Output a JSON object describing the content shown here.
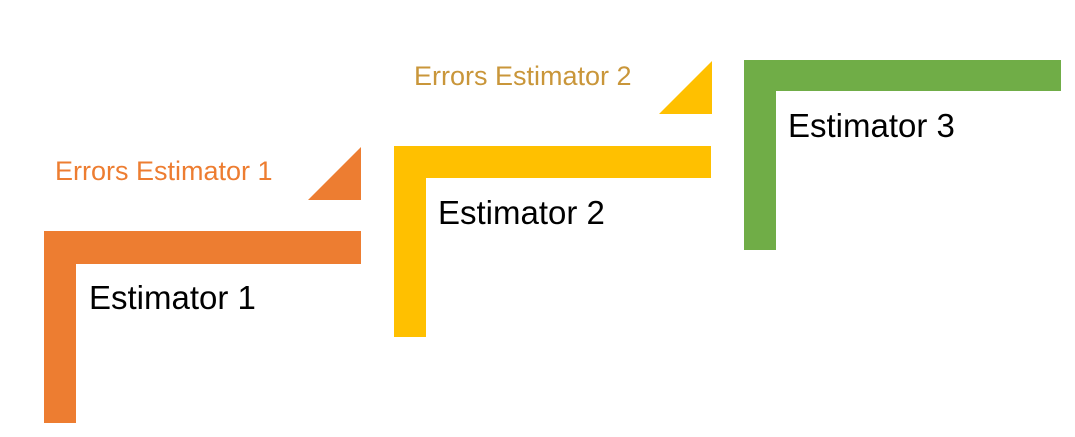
{
  "colors": {
    "estimator_1": "#ED7D31",
    "estimator_2": "#FFC000",
    "estimator_3": "#70AD47",
    "errors_1_text": "#ED7D31",
    "errors_2_text": "#C9963A"
  },
  "steps": [
    {
      "label": "Estimator 1",
      "errors_label": "Errors Estimator 1"
    },
    {
      "label": "Estimator 2",
      "errors_label": "Errors Estimator 2"
    },
    {
      "label": "Estimator 3"
    }
  ]
}
